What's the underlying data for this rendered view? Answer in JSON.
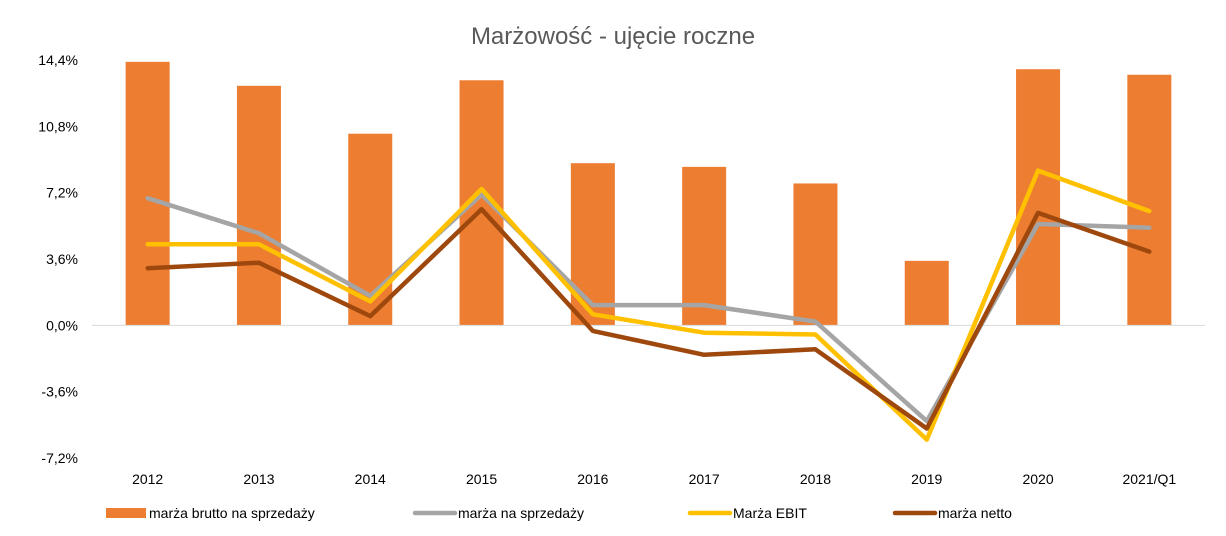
{
  "chart_data": {
    "type": "bar",
    "title": "Marżowość - ujęcie roczne",
    "categories": [
      "2012",
      "2013",
      "2014",
      "2015",
      "2016",
      "2017",
      "2018",
      "2019",
      "2020",
      "2021/Q1"
    ],
    "y_ticks": [
      "14,4%",
      "10,8%",
      "7,2%",
      "3,6%",
      "0,0%",
      "-3,6%",
      "-7,2%"
    ],
    "ylim": [
      -7.2,
      14.4
    ],
    "grid": false,
    "legend_position": "bottom",
    "series": [
      {
        "name": "marża brutto na sprzedaży",
        "type": "bar",
        "color": "#ED7D31",
        "values": [
          14.3,
          13.0,
          10.4,
          13.3,
          8.8,
          8.6,
          7.7,
          3.5,
          13.9,
          13.6
        ]
      },
      {
        "name": "marża na sprzedaży",
        "type": "line",
        "color": "#A5A5A5",
        "values": [
          6.9,
          5.0,
          1.6,
          7.1,
          1.1,
          1.1,
          0.2,
          -5.2,
          5.5,
          5.3
        ]
      },
      {
        "name": "Marża EBIT",
        "type": "line",
        "color": "#FFC000",
        "values": [
          4.4,
          4.4,
          1.3,
          7.4,
          0.6,
          -0.4,
          -0.5,
          -6.2,
          8.4,
          6.2
        ]
      },
      {
        "name": "marża netto",
        "type": "line",
        "color": "#9E480E",
        "values": [
          3.1,
          3.4,
          0.5,
          6.3,
          -0.3,
          -1.6,
          -1.3,
          -5.6,
          6.1,
          4.0
        ]
      }
    ]
  }
}
